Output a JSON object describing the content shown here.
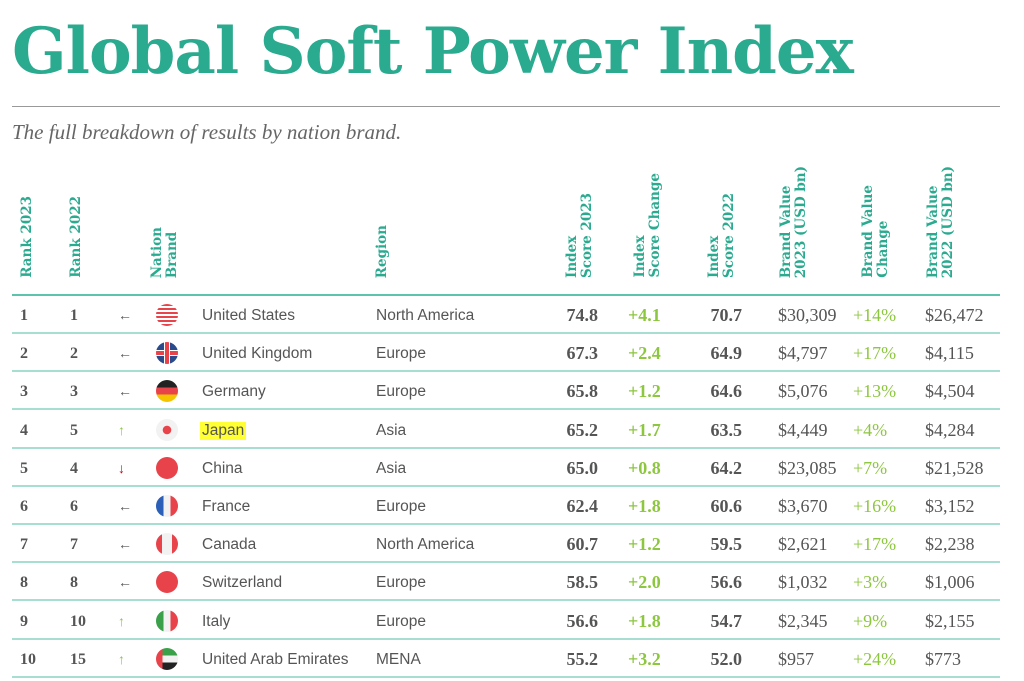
{
  "title": "Global Soft Power Index",
  "subtitle": "The full breakdown of results by nation brand.",
  "headers": {
    "rank2023": "Rank 2023",
    "rank2022": "Rank 2022",
    "nation": "Nation\nBrand",
    "region": "Region",
    "score2023": "Index\nScore 2023",
    "score_change": "Index\nScore Change",
    "score2022": "Index\nScore 2022",
    "bv2023": "Brand Value\n2023 (USD bn)",
    "bv_change": "Brand Value\nChange",
    "bv2022": "Brand Value\n2022 (USD bn)"
  },
  "colors": {
    "accent": "#2aaa8f",
    "positive": "#8dc63f",
    "negative": "#d0021b",
    "highlight": "#ffff33"
  },
  "rows": [
    {
      "rank2023": "1",
      "rank2022": "1",
      "trend": "same",
      "flag": "us",
      "nation": "United States",
      "region": "North America",
      "score2023": "74.8",
      "score_change": "+4.1",
      "score2022": "70.7",
      "bv2023": "$30,309",
      "bv_change": "+14%",
      "bv2022": "$26,472"
    },
    {
      "rank2023": "2",
      "rank2022": "2",
      "trend": "same",
      "flag": "uk",
      "nation": "United Kingdom",
      "region": "Europe",
      "score2023": "67.3",
      "score_change": "+2.4",
      "score2022": "64.9",
      "bv2023": "$4,797",
      "bv_change": "+17%",
      "bv2022": "$4,115"
    },
    {
      "rank2023": "3",
      "rank2022": "3",
      "trend": "same",
      "flag": "de",
      "nation": "Germany",
      "region": "Europe",
      "score2023": "65.8",
      "score_change": "+1.2",
      "score2022": "64.6",
      "bv2023": "$5,076",
      "bv_change": "+13%",
      "bv2022": "$4,504"
    },
    {
      "rank2023": "4",
      "rank2022": "5",
      "trend": "up",
      "flag": "jp",
      "nation": "Japan",
      "region": "Asia",
      "score2023": "65.2",
      "score_change": "+1.7",
      "score2022": "63.5",
      "bv2023": "$4,449",
      "bv_change": "+4%",
      "bv2022": "$4,284",
      "highlight": true
    },
    {
      "rank2023": "5",
      "rank2022": "4",
      "trend": "down",
      "flag": "cn",
      "nation": "China",
      "region": "Asia",
      "score2023": "65.0",
      "score_change": "+0.8",
      "score2022": "64.2",
      "bv2023": "$23,085",
      "bv_change": "+7%",
      "bv2022": "$21,528"
    },
    {
      "rank2023": "6",
      "rank2022": "6",
      "trend": "same",
      "flag": "fr",
      "nation": "France",
      "region": "Europe",
      "score2023": "62.4",
      "score_change": "+1.8",
      "score2022": "60.6",
      "bv2023": "$3,670",
      "bv_change": "+16%",
      "bv2022": "$3,152"
    },
    {
      "rank2023": "7",
      "rank2022": "7",
      "trend": "same",
      "flag": "ca",
      "nation": "Canada",
      "region": "North America",
      "score2023": "60.7",
      "score_change": "+1.2",
      "score2022": "59.5",
      "bv2023": "$2,621",
      "bv_change": "+17%",
      "bv2022": "$2,238"
    },
    {
      "rank2023": "8",
      "rank2022": "8",
      "trend": "same",
      "flag": "ch",
      "nation": "Switzerland",
      "region": "Europe",
      "score2023": "58.5",
      "score_change": "+2.0",
      "score2022": "56.6",
      "bv2023": "$1,032",
      "bv_change": "+3%",
      "bv2022": "$1,006"
    },
    {
      "rank2023": "9",
      "rank2022": "10",
      "trend": "up",
      "flag": "it",
      "nation": "Italy",
      "region": "Europe",
      "score2023": "56.6",
      "score_change": "+1.8",
      "score2022": "54.7",
      "bv2023": "$2,345",
      "bv_change": "+9%",
      "bv2022": "$2,155"
    },
    {
      "rank2023": "10",
      "rank2022": "15",
      "trend": "up",
      "flag": "ae",
      "nation": "United Arab Emirates",
      "region": "MENA",
      "score2023": "55.2",
      "score_change": "+3.2",
      "score2022": "52.0",
      "bv2023": "$957",
      "bv_change": "+24%",
      "bv2022": "$773"
    }
  ]
}
